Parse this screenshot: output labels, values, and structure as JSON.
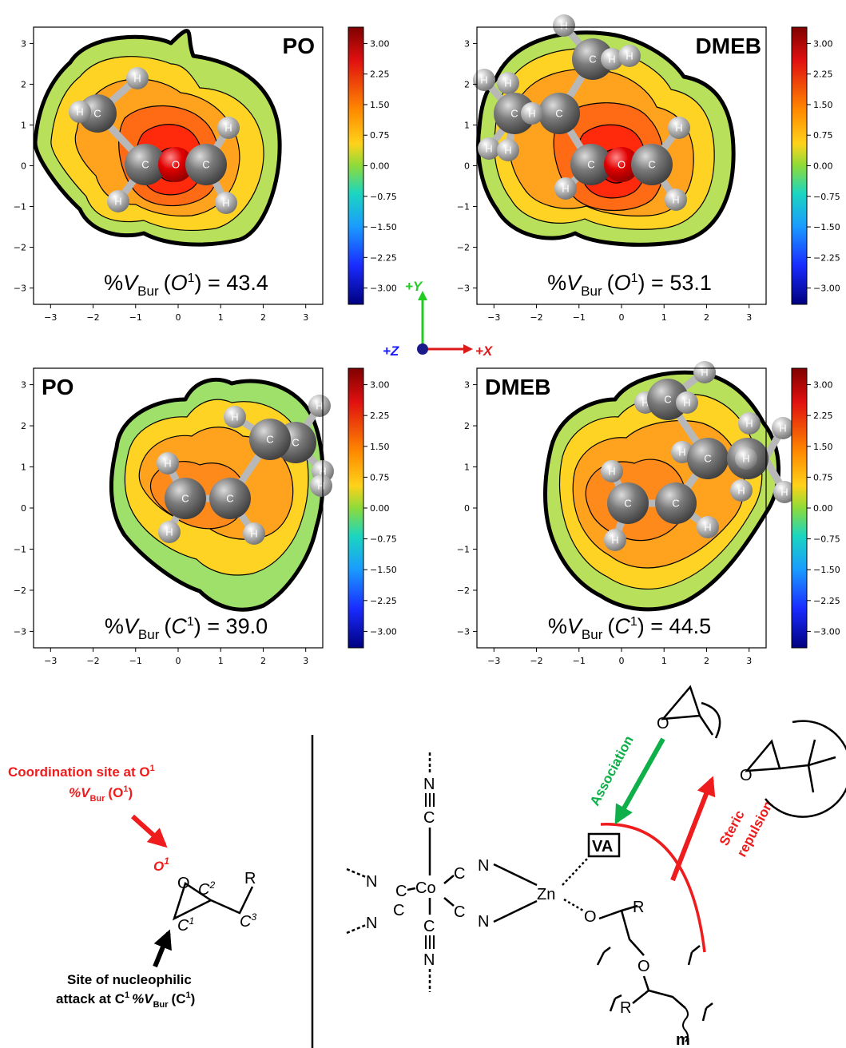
{
  "colors": {
    "accent_red": "#ee1c1c",
    "accent_green": "#0fb04a",
    "axis_blue": "#1a1aff",
    "axis_green": "#22cc22"
  },
  "colorbar_ticks": [
    "3.00",
    "2.25",
    "1.50",
    "0.75",
    "0.00",
    "−0.75",
    "−1.50",
    "−2.25",
    "−3.00"
  ],
  "x_ticks": [
    "−3",
    "−2",
    "−1",
    "0",
    "1",
    "2",
    "3"
  ],
  "y_ticks": [
    "3",
    "2",
    "1",
    "0",
    "−1",
    "−2",
    "−3"
  ],
  "panels": [
    {
      "id": "po-o",
      "label": "PO",
      "vbur_pre": "%",
      "vbur_v": "V",
      "vbur_sub": "Bur",
      "vbur_site": "O",
      "vbur_sup": "1",
      "vbur_value": "= 43.4"
    },
    {
      "id": "dmeb-o",
      "label": "DMEB",
      "vbur_pre": "%",
      "vbur_v": "V",
      "vbur_sub": "Bur",
      "vbur_site": "O",
      "vbur_sup": "1",
      "vbur_value": "= 53.1"
    },
    {
      "id": "po-c",
      "label": "PO",
      "vbur_pre": "%",
      "vbur_v": "V",
      "vbur_sub": "Bur",
      "vbur_site": "C",
      "vbur_sup": "1",
      "vbur_value": "= 39.0"
    },
    {
      "id": "dmeb-c",
      "label": "DMEB",
      "vbur_pre": "%",
      "vbur_v": "V",
      "vbur_sub": "Bur",
      "vbur_site": "C",
      "vbur_sup": "1",
      "vbur_value": "= 44.5"
    }
  ],
  "atom_labels": {
    "carbon": "C",
    "hydrogen": "H",
    "oxygen": "O"
  },
  "axes_legend": {
    "y": "+Y",
    "z": "+Z",
    "x": "+X"
  },
  "left_scheme": {
    "coord_line1": "Coordination site at O",
    "coord_sup": "1",
    "coord_line2": "%V",
    "coord_line2_sub": "Bur",
    "coord_line2_end": "(O",
    "coord_line2_sup": "1",
    "coord_line2_close": ")",
    "o1": "O",
    "o1_sup": "1",
    "ring_o": "O",
    "c1": "C",
    "c1_sup": "1",
    "c2": "C",
    "c2_sup": "2",
    "c3": "C",
    "c3_sup": "3",
    "r": "R",
    "attack_line1": "Site of nucleophilic",
    "attack_line2": "attack at C",
    "attack_sup": "1",
    "attack_v": "%V",
    "attack_sub": "Bur",
    "attack_end": "(C",
    "attack_sup2": "1",
    "attack_close": ")"
  },
  "right_scheme": {
    "co": "Co",
    "zn": "Zn",
    "n": "N",
    "c": "C",
    "va": "VA",
    "o": "O",
    "r": "R",
    "m": "m",
    "association": "Association",
    "steric1": "Steric",
    "steric2": "repulsion"
  }
}
